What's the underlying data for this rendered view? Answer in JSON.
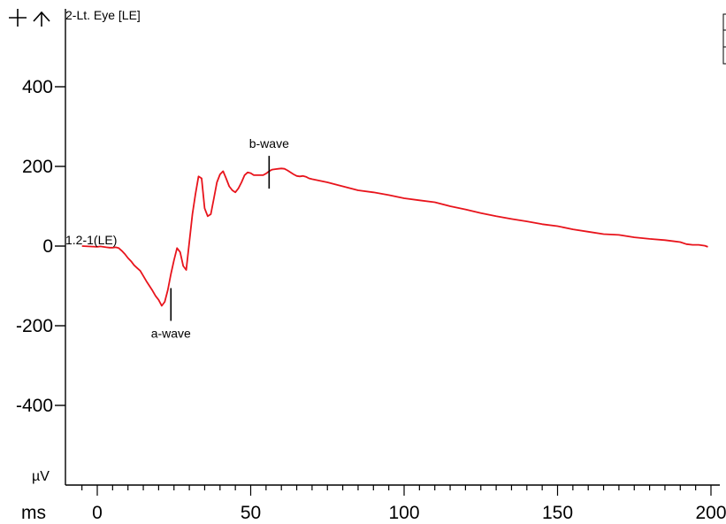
{
  "toolbar": {
    "icons": [
      "crosshair-plus-icon",
      "up-arrow-icon"
    ]
  },
  "chart_data": {
    "type": "line",
    "title": "2-Lt. Eye [LE]",
    "xlabel": "ms",
    "ylabel": "µV",
    "xlim": [
      -5,
      200
    ],
    "ylim": [
      -600,
      580
    ],
    "x_ticks": [
      0,
      50,
      100,
      150,
      200
    ],
    "y_ticks": [
      400,
      200,
      0,
      -200,
      -400
    ],
    "grid": false,
    "legend_box": "top-right",
    "series": [
      {
        "name": "1.2-1(LE)",
        "color": "#e8141c",
        "x": [
          -5,
          0,
          1,
          2,
          3,
          4,
          5,
          6,
          7,
          8,
          9,
          10,
          11,
          12,
          13,
          14,
          15,
          16,
          17,
          18,
          19,
          20,
          21,
          22,
          23,
          24,
          25,
          26,
          27,
          28,
          29,
          30,
          31,
          32,
          33,
          34,
          35,
          36,
          37,
          38,
          39,
          40,
          41,
          42,
          43,
          44,
          45,
          46,
          47,
          48,
          49,
          50,
          51,
          52,
          53,
          54,
          55,
          56,
          57,
          58,
          59,
          60,
          61,
          62,
          63,
          64,
          65,
          66,
          67,
          68,
          69,
          70,
          75,
          80,
          85,
          90,
          95,
          100,
          105,
          110,
          115,
          120,
          125,
          130,
          135,
          140,
          145,
          150,
          155,
          160,
          165,
          170,
          175,
          180,
          185,
          190,
          192,
          194,
          196,
          198,
          199
        ],
        "y": [
          0,
          -2,
          -1,
          -2,
          -3,
          -4,
          -4,
          -3,
          -5,
          -12,
          -20,
          -30,
          -38,
          -48,
          -55,
          -62,
          -75,
          -88,
          -100,
          -112,
          -125,
          -135,
          -150,
          -140,
          -110,
          -70,
          -35,
          -5,
          -15,
          -50,
          -60,
          10,
          80,
          130,
          175,
          170,
          95,
          75,
          80,
          120,
          160,
          180,
          188,
          170,
          150,
          140,
          135,
          145,
          160,
          178,
          185,
          183,
          178,
          178,
          178,
          178,
          182,
          188,
          192,
          193,
          194,
          195,
          194,
          190,
          185,
          180,
          176,
          175,
          176,
          174,
          170,
          168,
          160,
          150,
          140,
          135,
          128,
          120,
          115,
          110,
          100,
          92,
          83,
          75,
          68,
          62,
          55,
          50,
          42,
          36,
          30,
          28,
          22,
          18,
          15,
          10,
          5,
          3,
          3,
          1,
          -2
        ]
      }
    ],
    "annotations": [
      {
        "label": "a-wave",
        "x": 24,
        "y": -150
      },
      {
        "label": "b-wave",
        "x": 56,
        "y": 182
      }
    ]
  }
}
